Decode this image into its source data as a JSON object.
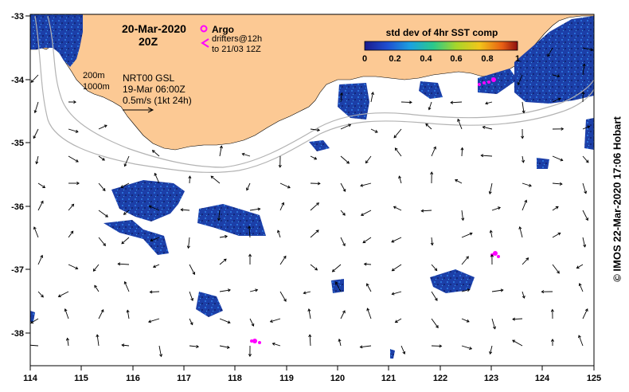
{
  "map": {
    "date": "20-Mar-2020",
    "hour": "20Z",
    "x_ticks": [
      "114",
      "115",
      "116",
      "117",
      "118",
      "119",
      "120",
      "121",
      "122",
      "123",
      "124",
      "125"
    ],
    "y_ticks": [
      "-33",
      "-34",
      "-35",
      "-36",
      "-37",
      "-38"
    ],
    "colors": {
      "land": "#fcc994",
      "ocean": "#ffffff",
      "sst_patch": "#1c3fa8",
      "isobath": "#b3b3b3",
      "argo": "#ff00ff",
      "arrow": "#000000"
    }
  },
  "legend": {
    "argo_label": "Argo",
    "drifters_label": "drifters@12h",
    "drifters_to": "to 21/03 12Z"
  },
  "isobaths": {
    "label_200": "200m",
    "label_1000": "1000m"
  },
  "model": {
    "name": "NRT00 GSL",
    "date": "19-Mar 06:00Z"
  },
  "scale": {
    "label": "0.5m/s (1kt 24h)"
  },
  "colorbar": {
    "title": "std dev of 4hr SST comp",
    "ticks": [
      "0",
      "0.2",
      "0.4",
      "0.6",
      "0.8",
      "1"
    ],
    "range": [
      0,
      1
    ]
  },
  "credit": "© IMOS 22-Mar-2020 17:06 Hobart"
}
